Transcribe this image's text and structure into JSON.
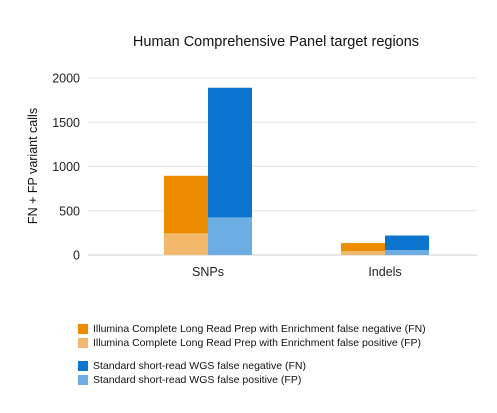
{
  "chart_data": {
    "type": "bar",
    "stacked": true,
    "title": "Human Comprehensive Panel target regions",
    "xlabel": "",
    "ylabel": "FN + FP variant calls",
    "ylim": [
      0,
      2000
    ],
    "yticks": [
      0,
      500,
      1000,
      1500,
      2000
    ],
    "grid": true,
    "legend_position": "bottom",
    "categories": [
      "SNPs",
      "Indels"
    ],
    "groups": [
      {
        "series": [
          {
            "name": "Illumina Complete Long Read Prep with Enrichment false positive (FP)",
            "color": "#f2b86b",
            "values": [
              245,
              45
            ]
          },
          {
            "name": "Illumina Complete Long Read Prep with Enrichment false negative (FN)",
            "color": "#ee8c00",
            "values": [
              650,
              90
            ]
          }
        ]
      },
      {
        "series": [
          {
            "name": "Standard short-read WGS false positive (FP)",
            "color": "#6caee3",
            "values": [
              425,
              55
            ]
          },
          {
            "name": "Standard short-read WGS false negative (FN)",
            "color": "#0a74cf",
            "values": [
              1465,
              165
            ]
          }
        ]
      }
    ]
  },
  "legend": {
    "items": [
      {
        "label": "Illumina Complete Long Read Prep with Enrichment false negative (FN)",
        "color": "#ee8c00"
      },
      {
        "label": "Illumina Complete Long Read Prep with Enrichment false positive (FP)",
        "color": "#f2b86b"
      },
      {
        "label": "Standard short-read WGS false negative (FN)",
        "color": "#0a74cf"
      },
      {
        "label": "Standard short-read WGS false positive (FP)",
        "color": "#6caee3"
      }
    ]
  }
}
